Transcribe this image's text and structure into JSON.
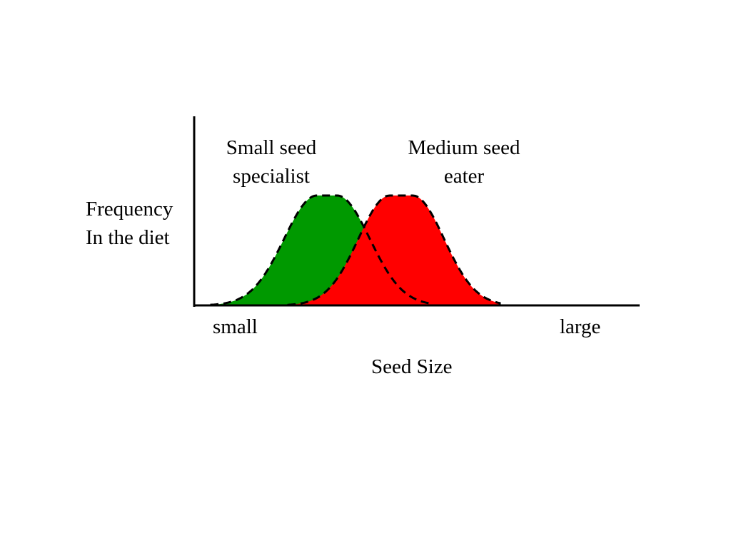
{
  "diagram": {
    "curves": [
      {
        "key": "small",
        "label_lines": [
          "Small seed",
          "specialist"
        ],
        "fill": "#009900",
        "stroke": "#000000"
      },
      {
        "key": "medium",
        "label_lines": [
          "Medium seed",
          "eater"
        ],
        "fill": "#ff0000",
        "stroke": "#000000"
      }
    ],
    "y_axis_label_lines": [
      "Frequency",
      "In the diet"
    ],
    "x_axis": {
      "label": "Seed Size",
      "tick_left": "small",
      "tick_right": "large"
    },
    "axis_color": "#000000"
  }
}
